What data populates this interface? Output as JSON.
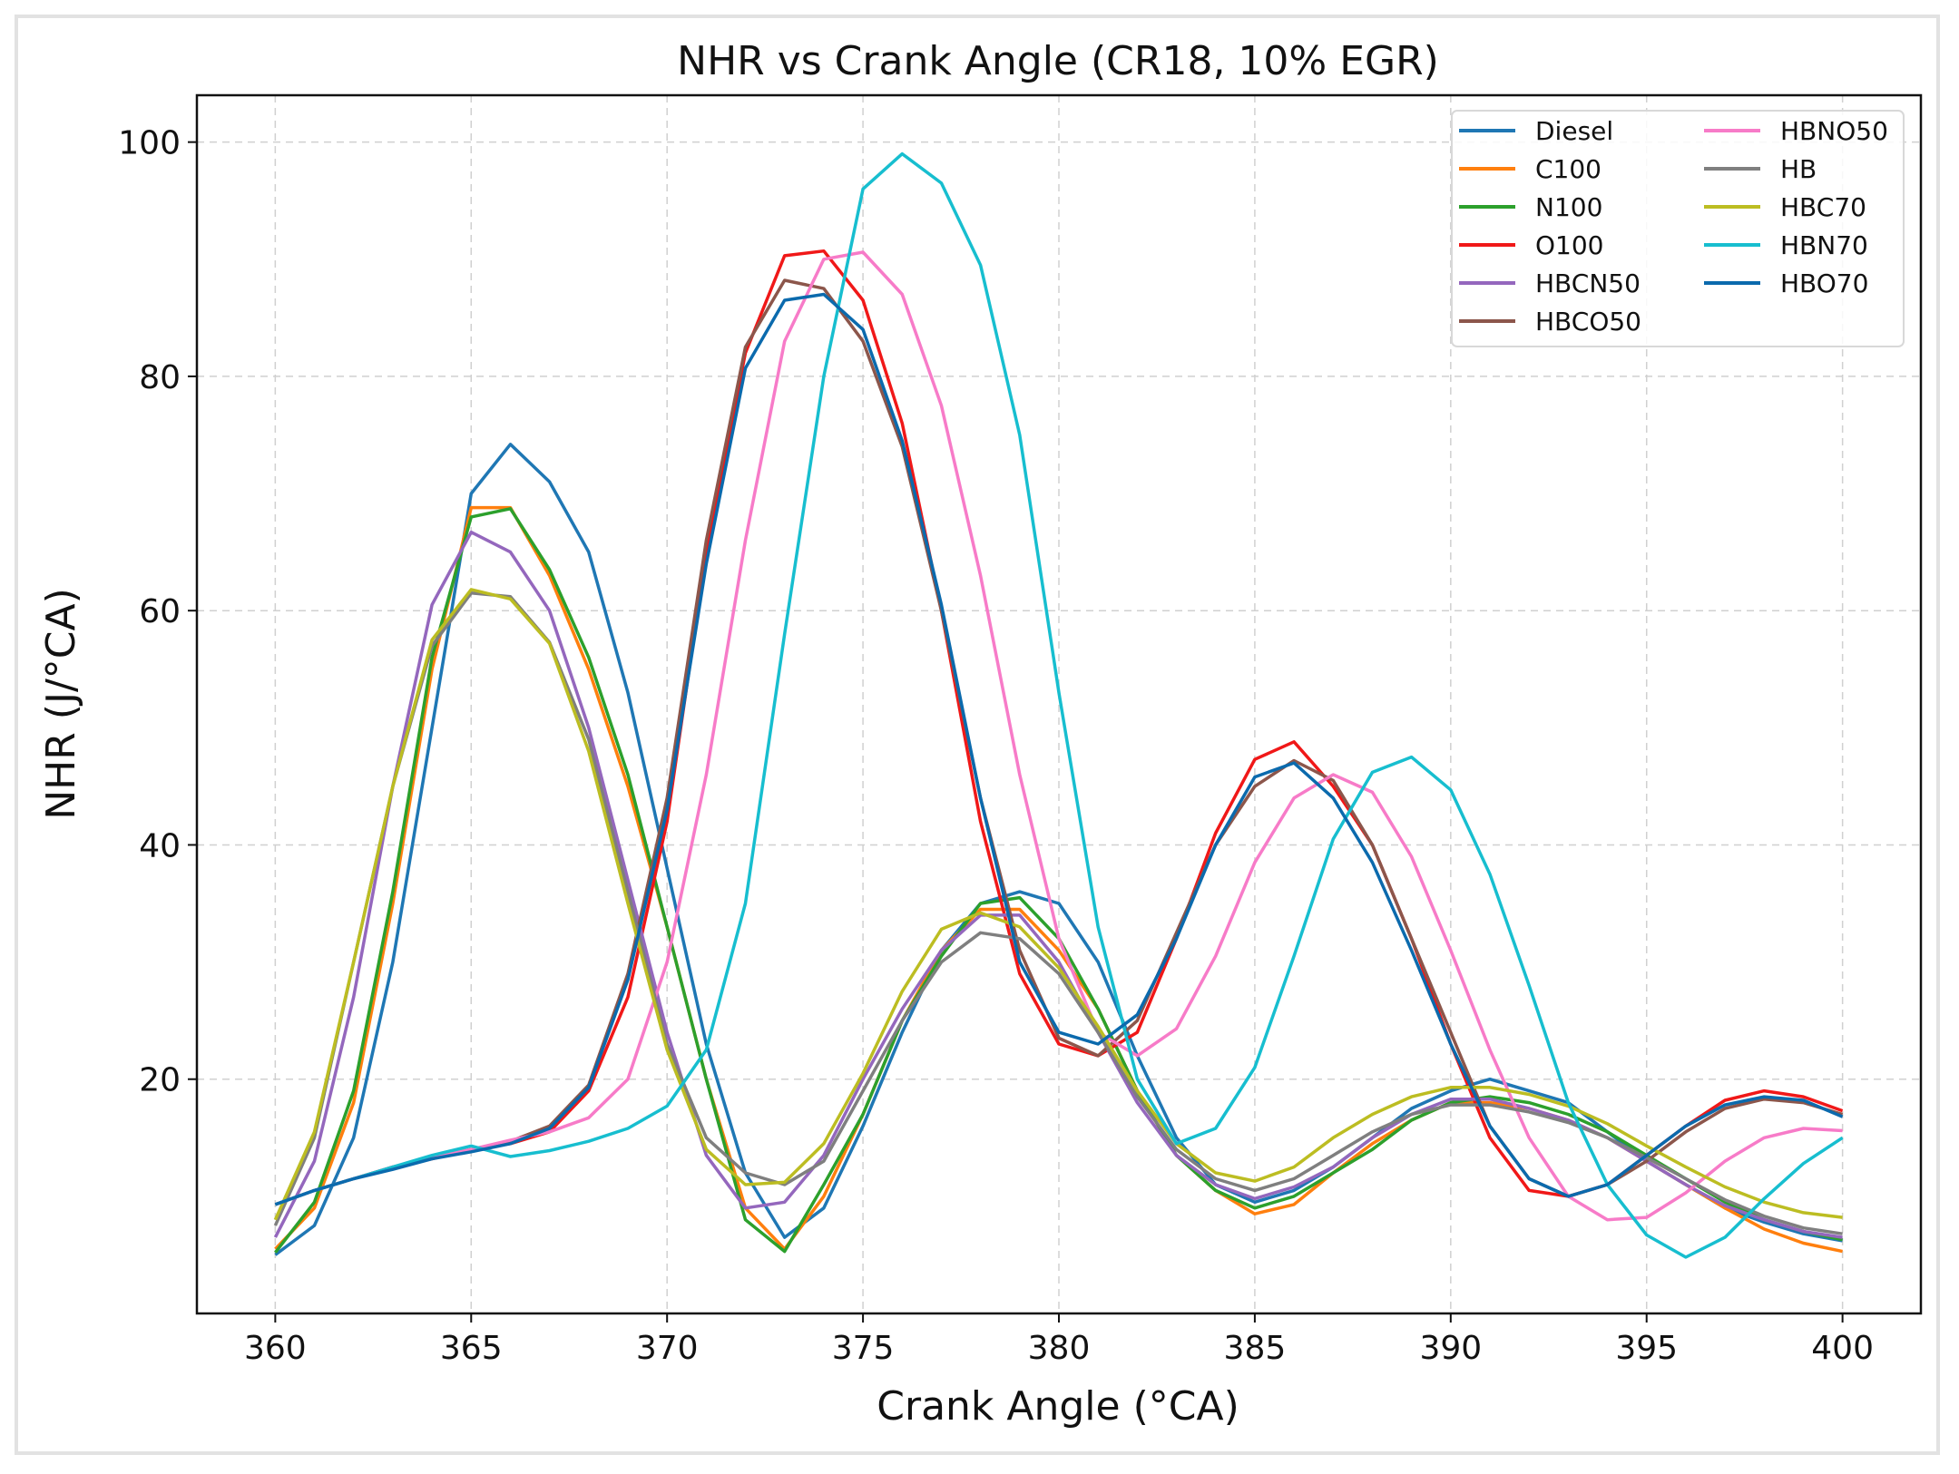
{
  "chart_data": {
    "type": "line",
    "title": "NHR vs Crank Angle (CR18, 10% EGR)",
    "xlabel": "Crank Angle (°CA)",
    "ylabel": "NHR (J/°CA)",
    "xlim": [
      358,
      402
    ],
    "ylim": [
      0,
      104
    ],
    "xticks": [
      360,
      365,
      370,
      375,
      380,
      385,
      390,
      395,
      400
    ],
    "yticks": [
      20,
      40,
      60,
      80,
      100
    ],
    "grid": true,
    "legend_position": "top-right",
    "legend_columns": 2,
    "x": [
      360,
      361,
      362,
      363,
      364,
      365,
      366,
      367,
      368,
      369,
      370,
      371,
      372,
      373,
      374,
      375,
      376,
      377,
      378,
      379,
      380,
      381,
      382,
      383,
      384,
      385,
      386,
      387,
      388,
      389,
      390,
      391,
      392,
      393,
      394,
      395,
      396,
      397,
      398,
      399,
      400
    ],
    "series": [
      {
        "name": "Diesel",
        "color": "#1f77b4",
        "values": [
          5,
          7.5,
          15,
          30,
          50,
          70,
          74.2,
          71,
          65,
          53,
          38,
          23,
          12,
          6.5,
          9,
          16,
          24,
          31,
          35,
          36,
          35,
          30,
          22,
          15,
          11,
          9.5,
          10.5,
          12.5,
          15,
          17.5,
          19,
          20,
          19,
          18,
          15.5,
          13,
          11,
          9,
          7.8,
          6.8,
          6.2
        ]
      },
      {
        "name": "C100",
        "color": "#ff7f0e",
        "values": [
          5.5,
          9,
          18,
          35,
          55,
          68.8,
          68.8,
          63,
          55,
          45,
          33,
          20,
          9,
          5.5,
          10,
          17,
          25,
          31,
          34.5,
          34.5,
          31,
          26,
          19,
          13.5,
          10.5,
          8.5,
          9.3,
          12,
          14.5,
          16.5,
          18,
          18,
          17.5,
          16.5,
          15,
          13,
          11,
          9,
          7.2,
          6,
          5.3
        ]
      },
      {
        "name": "N100",
        "color": "#2ca02c",
        "values": [
          5.2,
          9.5,
          19,
          36,
          56,
          68,
          68.7,
          63.5,
          56,
          46,
          33,
          20,
          8,
          5.3,
          11,
          17,
          25,
          30.5,
          35,
          35.5,
          32,
          26,
          19,
          13.5,
          10.5,
          9,
          10,
          12,
          14,
          16.5,
          18,
          18.5,
          18,
          17,
          15.5,
          13.5,
          11.5,
          9.5,
          8,
          7,
          6.3
        ]
      },
      {
        "name": "O100",
        "color": "#f01818",
        "values": [
          9.3,
          10.5,
          11.5,
          12.5,
          13.2,
          14,
          14.5,
          15.5,
          19,
          27,
          42,
          65,
          82,
          90.3,
          90.7,
          86.5,
          76,
          60,
          42,
          29,
          23,
          22,
          24,
          32,
          41,
          47.3,
          48.8,
          45,
          40,
          32,
          23,
          15,
          10.5,
          10,
          11,
          13.5,
          16,
          18.2,
          19,
          18.5,
          17.3
        ]
      },
      {
        "name": "HBCN50",
        "color": "#9467bd",
        "values": [
          6.5,
          13,
          27,
          45,
          60.5,
          66.7,
          65,
          60,
          50,
          37,
          24,
          13.5,
          9,
          9.5,
          13.5,
          20,
          26,
          31,
          34,
          34,
          30,
          24,
          18,
          13.5,
          11,
          9.8,
          10.8,
          12.5,
          15,
          17,
          18.3,
          18.3,
          17.5,
          16.5,
          15,
          13,
          11,
          9.2,
          8,
          7,
          6.5
        ]
      },
      {
        "name": "HBCO50",
        "color": "#8c564b",
        "values": [
          9.3,
          10.5,
          11.5,
          12.5,
          13.3,
          14,
          14.7,
          16,
          19.5,
          29,
          44,
          66,
          82.5,
          88.2,
          87.5,
          83,
          74,
          60,
          44,
          31,
          23.5,
          22,
          25,
          32.5,
          40,
          45,
          47.2,
          45.5,
          40,
          32,
          24,
          16,
          11.5,
          10,
          11,
          13,
          15.5,
          17.5,
          18.3,
          18,
          17
        ]
      },
      {
        "name": "HBNO50",
        "color": "#f77bc8",
        "values": [
          9.3,
          10.5,
          11.5,
          12.5,
          13.3,
          14,
          14.8,
          15.5,
          16.7,
          20,
          30,
          46,
          66,
          83,
          90,
          90.6,
          87,
          77.5,
          63,
          46,
          32,
          24,
          22,
          24.3,
          30.5,
          38.5,
          44,
          46,
          44.5,
          39,
          31,
          22.5,
          15,
          10,
          8,
          8.2,
          10.3,
          13,
          15,
          15.8,
          15.6
        ]
      },
      {
        "name": "HB",
        "color": "#7f7f7f",
        "values": [
          7.5,
          15,
          30,
          45,
          57,
          61.5,
          61.2,
          57.3,
          49,
          36,
          23,
          15,
          12,
          11,
          13,
          19,
          25,
          30,
          32.5,
          32,
          29,
          24,
          18.5,
          14,
          11.5,
          10.5,
          11.5,
          13.5,
          15.5,
          17,
          17.8,
          17.8,
          17.2,
          16.3,
          15,
          13.3,
          11.5,
          9.7,
          8.3,
          7.3,
          6.8
        ]
      },
      {
        "name": "HBC70",
        "color": "#bcbd22",
        "values": [
          8,
          15.5,
          30,
          45,
          57.5,
          61.8,
          61,
          57.2,
          48,
          35,
          22.5,
          14,
          11,
          11.2,
          14.5,
          20.5,
          27.5,
          32.8,
          34.2,
          33,
          29.5,
          24.5,
          19,
          14.5,
          12,
          11.3,
          12.5,
          15,
          17,
          18.5,
          19.3,
          19.3,
          18.7,
          17.7,
          16.2,
          14.3,
          12.5,
          10.8,
          9.5,
          8.6,
          8.2
        ]
      },
      {
        "name": "HBN70",
        "color": "#17becf",
        "values": [
          9.3,
          10.5,
          11.5,
          12.5,
          13.5,
          14.3,
          13.4,
          13.9,
          14.7,
          15.8,
          17.7,
          22.5,
          35,
          58,
          80,
          96,
          99,
          96.5,
          89.5,
          75,
          53,
          33,
          20,
          14.5,
          15.8,
          21,
          30.5,
          40.5,
          46.2,
          47.5,
          44.7,
          37.5,
          28,
          18,
          11,
          6.7,
          4.8,
          6.5,
          9.8,
          12.8,
          15
        ]
      },
      {
        "name": "HBO70",
        "color": "#0b6aad",
        "values": [
          9.3,
          10.5,
          11.5,
          12.3,
          13.2,
          13.8,
          14.5,
          15.8,
          19.3,
          28.5,
          43,
          64,
          80.7,
          86.5,
          87,
          84,
          74.5,
          60.5,
          44,
          30,
          24,
          23,
          25.5,
          32,
          40,
          45.8,
          47,
          44,
          38.5,
          31,
          23,
          16,
          11.5,
          10,
          11,
          13.5,
          16,
          17.8,
          18.5,
          18.2,
          16.8
        ]
      }
    ]
  }
}
